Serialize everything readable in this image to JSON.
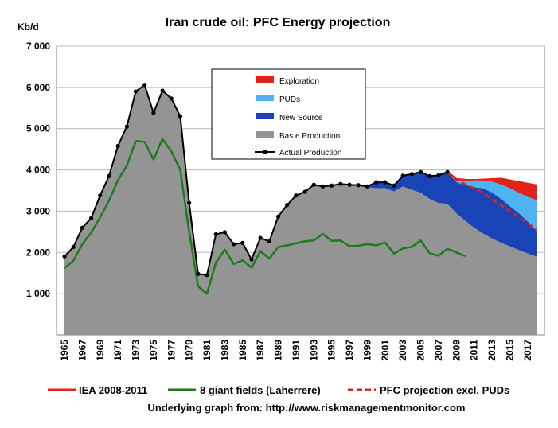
{
  "chart_data": {
    "type": "area",
    "title": "Iran crude oil: PFC Energy projection",
    "ylabel": "Kb/d",
    "xlabel": "",
    "ylim": [
      0,
      7000
    ],
    "xlim": [
      1965,
      2018
    ],
    "y_ticks": [
      "7 000",
      "6 000",
      "5 000",
      "4 000",
      "3 000",
      "2 000",
      "1 000"
    ],
    "y_tick_values": [
      7000,
      6000,
      5000,
      4000,
      3000,
      2000,
      1000
    ],
    "x_ticks": [
      "1965",
      "1967",
      "1969",
      "1971",
      "1973",
      "1975",
      "1977",
      "1979",
      "1981",
      "1983",
      "1985",
      "1987",
      "1989",
      "1991",
      "1993",
      "1995",
      "1997",
      "1999",
      "2001",
      "2003",
      "2005",
      "2007",
      "2009",
      "2011",
      "2013",
      "2015",
      "2017"
    ],
    "grid": "horizontal",
    "legend_inside": [
      {
        "name": "Exploration",
        "color": "#e2231a"
      },
      {
        "name": "PUDs",
        "color": "#4fb3f2"
      },
      {
        "name": "New Source",
        "color": "#1844b8"
      },
      {
        "name": "Bas e Production",
        "color": "#949494"
      },
      {
        "name": "Actual Production",
        "color": "#000000"
      }
    ],
    "legend_bottom": [
      {
        "name": "IEA 2008-2011",
        "color": "#e2231a",
        "style": "solid"
      },
      {
        "name": "8 giant fields (Laherrere)",
        "color": "#1f7a1f",
        "style": "solid"
      },
      {
        "name": "PFC projection excl. PUDs",
        "color": "#e2231a",
        "style": "dashed"
      }
    ],
    "source_note": "Underlying graph from:  http://www.riskmanagementmonitor.com",
    "series": [
      {
        "name": "Actual Production",
        "x": [
          1965,
          1966,
          1967,
          1968,
          1969,
          1970,
          1971,
          1972,
          1973,
          1974,
          1975,
          1976,
          1977,
          1978,
          1979,
          1980,
          1981,
          1982,
          1983,
          1984,
          1985,
          1986,
          1987,
          1988,
          1989,
          1990,
          1991,
          1992,
          1993,
          1994,
          1995,
          1996,
          1997,
          1998,
          1999,
          2000,
          2001,
          2002,
          2003,
          2004,
          2005,
          2006,
          2007,
          2008
        ],
        "values": [
          1900,
          2130,
          2600,
          2830,
          3380,
          3850,
          4580,
          5050,
          5900,
          6060,
          5380,
          5920,
          5730,
          5300,
          3200,
          1480,
          1450,
          2440,
          2490,
          2200,
          2230,
          1830,
          2350,
          2270,
          2870,
          3150,
          3380,
          3470,
          3640,
          3600,
          3620,
          3660,
          3640,
          3630,
          3600,
          3700,
          3700,
          3620,
          3860,
          3900,
          3950,
          3850,
          3870,
          3950
        ]
      },
      {
        "name": "8 giant fields (Laherrere)",
        "x": [
          1965,
          1966,
          1967,
          1968,
          1969,
          1970,
          1971,
          1972,
          1973,
          1974,
          1975,
          1976,
          1977,
          1978,
          1979,
          1980,
          1981,
          1982,
          1983,
          1984,
          1985,
          1986,
          1987,
          1988,
          1989,
          1990,
          1991,
          1992,
          1993,
          1994,
          1995,
          1996,
          1997,
          1998,
          1999,
          2000,
          2001,
          2002,
          2003,
          2004,
          2005,
          2006,
          2007,
          2008,
          2009,
          2010
        ],
        "values": [
          1620,
          1800,
          2200,
          2480,
          2850,
          3250,
          3750,
          4100,
          4700,
          4680,
          4250,
          4750,
          4450,
          4000,
          2500,
          1180,
          1000,
          1750,
          2070,
          1720,
          1810,
          1630,
          2030,
          1850,
          2130,
          2170,
          2220,
          2270,
          2290,
          2450,
          2280,
          2290,
          2150,
          2160,
          2200,
          2170,
          2240,
          1970,
          2100,
          2130,
          2290,
          1980,
          1920,
          2090,
          2000,
          1910
        ]
      },
      {
        "name": "Bas e Production",
        "x": [
          1965,
          1966,
          1967,
          1968,
          1969,
          1970,
          1971,
          1972,
          1973,
          1974,
          1975,
          1976,
          1977,
          1978,
          1979,
          1980,
          1981,
          1982,
          1983,
          1984,
          1985,
          1986,
          1987,
          1988,
          1989,
          1990,
          1991,
          1992,
          1993,
          1994,
          1995,
          1996,
          1997,
          1998,
          1999,
          2000,
          2001,
          2002,
          2003,
          2004,
          2005,
          2006,
          2007,
          2008,
          2009,
          2010,
          2011,
          2012,
          2013,
          2014,
          2015,
          2016,
          2017,
          2018
        ],
        "values": [
          1900,
          2130,
          2600,
          2830,
          3380,
          3850,
          4580,
          5050,
          5900,
          6060,
          5380,
          5920,
          5730,
          5300,
          3200,
          1480,
          1450,
          2440,
          2490,
          2200,
          2230,
          1830,
          2350,
          2270,
          2870,
          3150,
          3380,
          3470,
          3640,
          3600,
          3620,
          3660,
          3640,
          3630,
          3580,
          3560,
          3560,
          3480,
          3600,
          3520,
          3450,
          3300,
          3200,
          3180,
          2950,
          2770,
          2600,
          2460,
          2340,
          2240,
          2150,
          2060,
          1980,
          1900
        ]
      },
      {
        "name": "New Source",
        "x": [
          1998,
          1999,
          2000,
          2001,
          2002,
          2003,
          2004,
          2005,
          2006,
          2007,
          2008,
          2009,
          2010,
          2011,
          2012,
          2013,
          2014,
          2015,
          2016,
          2017,
          2018
        ],
        "values": [
          3630,
          3600,
          3700,
          3700,
          3620,
          3860,
          3900,
          3950,
          3850,
          3870,
          3950,
          3700,
          3630,
          3580,
          3550,
          3450,
          3300,
          3120,
          2950,
          2750,
          2520
        ]
      },
      {
        "name": "PUDs",
        "x": [
          2008,
          2009,
          2010,
          2011,
          2012,
          2013,
          2014,
          2015,
          2016,
          2017,
          2018
        ],
        "values": [
          3950,
          3790,
          3760,
          3750,
          3740,
          3720,
          3650,
          3560,
          3450,
          3350,
          3270
        ]
      },
      {
        "name": "Exploration",
        "x": [
          2008,
          2009,
          2010,
          2011,
          2012,
          2013,
          2014,
          2015,
          2016,
          2017,
          2018
        ],
        "values": [
          3950,
          3790,
          3780,
          3780,
          3790,
          3800,
          3810,
          3770,
          3730,
          3690,
          3650
        ]
      },
      {
        "name": "IEA 2008-2011",
        "x": [
          2008,
          2009,
          2010,
          2011
        ],
        "values": [
          3950,
          3780,
          3760,
          3740
        ]
      },
      {
        "name": "PFC projection excl. PUDs",
        "x": [
          2008,
          2009,
          2010,
          2011,
          2012,
          2013,
          2014,
          2015,
          2016,
          2017,
          2018
        ],
        "values": [
          3950,
          3760,
          3650,
          3560,
          3440,
          3280,
          3150,
          3000,
          2860,
          2710,
          2560
        ]
      }
    ]
  }
}
